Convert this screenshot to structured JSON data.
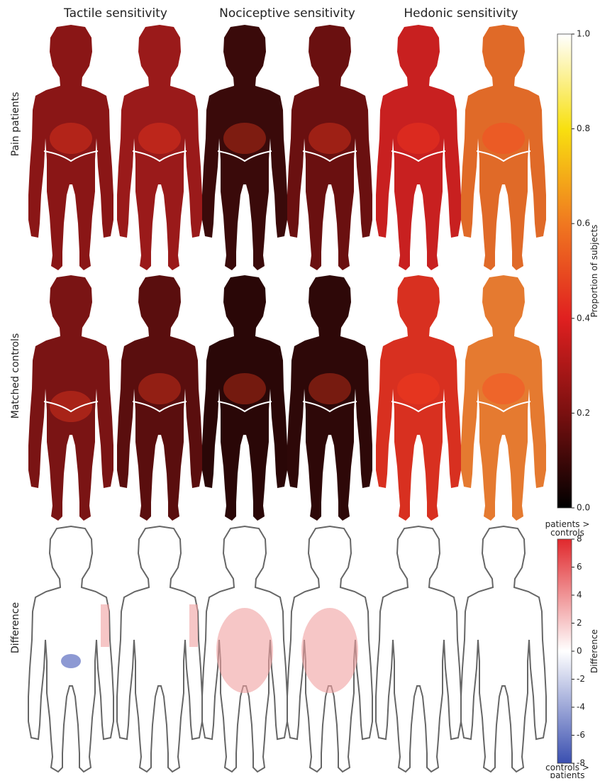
{
  "columns": [
    "Tactile sensitivity",
    "Nociceptive sensitivity",
    "Hedonic sensitivity"
  ],
  "rows": [
    "Pain patients",
    "Matched controls",
    "Difference"
  ],
  "colorbars": [
    {
      "label": "Proportion of subjects",
      "lim": [
        0,
        1
      ],
      "ticks": [
        {
          "value": 0,
          "label": "0.0"
        },
        0.2,
        0.4,
        0.6,
        0.8,
        {
          "value": 1,
          "label": "1.0"
        }
      ]
    },
    {
      "label": "Difference",
      "lim": [
        -8,
        8
      ],
      "ticks": [
        -8,
        -6,
        -4,
        -2,
        0,
        2,
        4,
        6,
        8
      ],
      "top_label": [
        "patients >",
        "controls"
      ],
      "bottom_label": [
        "controls >",
        "patients"
      ]
    }
  ]
}
